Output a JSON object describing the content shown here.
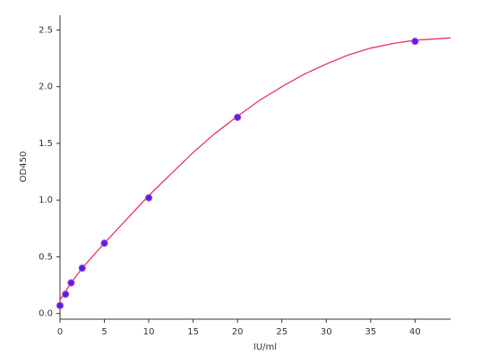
{
  "chart_data": {
    "type": "scatter",
    "x_label": "IU/ml",
    "y_label": "OD450",
    "xlim": [
      0,
      44
    ],
    "xticks": [
      0,
      5,
      10,
      15,
      20,
      25,
      30,
      35,
      40
    ],
    "ylim": [
      -0.05,
      2.63
    ],
    "yticks": [
      {
        "value": 0,
        "label": "0.0"
      },
      0.5,
      {
        "value": 1,
        "label": "1.0"
      },
      1.5,
      {
        "value": 2,
        "label": "2.0"
      },
      2.5
    ],
    "grid": false,
    "series": [
      {
        "type": "line",
        "color": "#e8336b",
        "x": [
          0,
          1.25,
          2.5,
          5,
          7.5,
          10,
          12.5,
          15,
          17.5,
          20,
          22.5,
          25,
          27.5,
          30,
          32.5,
          35,
          37.5,
          40,
          42,
          44
        ],
        "values": [
          0.12,
          0.27,
          0.4,
          0.62,
          0.83,
          1.04,
          1.23,
          1.42,
          1.59,
          1.74,
          1.88,
          2.0,
          2.11,
          2.2,
          2.28,
          2.34,
          2.38,
          2.41,
          2.42,
          2.43
        ]
      },
      {
        "type": "scatter",
        "color": "#3a2cf0",
        "x": [
          0,
          0.625,
          1.25,
          2.5,
          5,
          10,
          20,
          40
        ],
        "values": [
          0.07,
          0.17,
          0.27,
          0.4,
          0.62,
          1.02,
          1.73,
          2.4
        ]
      }
    ]
  }
}
